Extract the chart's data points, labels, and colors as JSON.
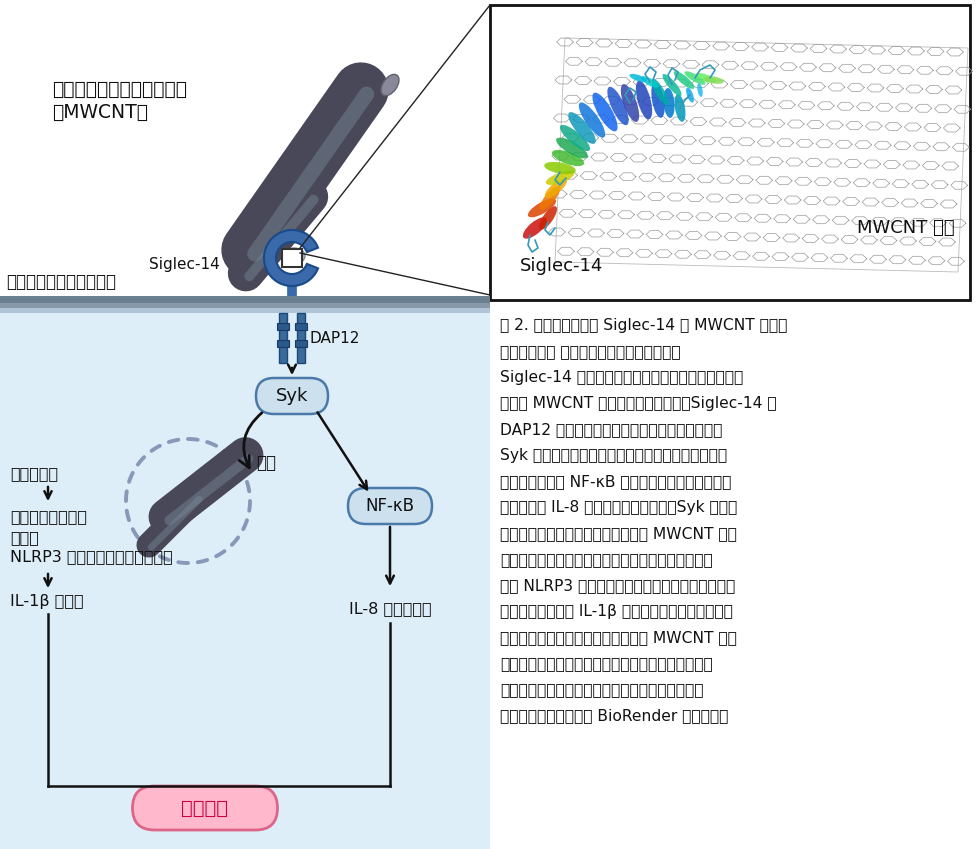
{
  "bg_color": "#ffffff",
  "cell_bg_color": "#deeef8",
  "mwcnt_color": "#484858",
  "mwcnt_tip_color": "#888898",
  "siglec_color": "#3a6aaa",
  "siglec_edge": "#1a4a8a",
  "dap12_color": "#3a6a9a",
  "dap12_edge": "#1a4a7a",
  "syk_fill": "#cce0ee",
  "syk_edge": "#4a7aaa",
  "nfkb_fill": "#cce0ee",
  "nfkb_edge": "#4a7aaa",
  "chronic_fill": "#ffb8cc",
  "chronic_edge": "#dd6688",
  "chronic_text": "#cc0044",
  "membrane_top": "#6a8090",
  "membrane_mid": "#8090a0",
  "membrane_bot": "#a8bece",
  "phagosome_color": "#7888aa",
  "arrow_color": "#111111",
  "inset_border": "#111111",
  "hex_color": "#aaaaaa",
  "label_color": "#111111",
  "desc_lines": [
    "図 2. マクロファージ Siglec-14 の MWCNT 認識と",
    "炎症応答機構 マクロファージ細胞表面上の",
    "Siglec-14 受容体は、芳香属アミノ酸クラスターを",
    "介して MWCNT を認識して谪食する。Siglec-14 は",
    "DAP12 というアダプタータンパク質と会合し、",
    "Syk というリン酸化酵素を活性化する。続いてその",
    "下流の転写因子 NF-κB が活性化され、炎症性サイ",
    "トカインの IL-8 が産生・分泌される。Syk の活性",
    "化は谪食作用を誘導し、谪食された MWCNT はマ",
    "クロファージ食胞を傷害する。そのストレスが細胞",
    "死や NLRP3 インフラマソームを活性化させ、炎症",
    "性サイトカインの IL-1β の分泌を誘導する。これら",
    "のマクロファージ炎症応答によって MWCNT の炎",
    "症毒性が誘発されると考えられる。黒四角内は分子",
    "動力学シミュレーションのスナップショットを示",
    "す。図の作成にあたり BioRender を用いた。"
  ]
}
